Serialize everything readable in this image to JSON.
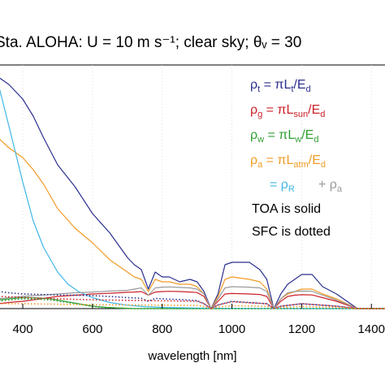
{
  "chart_data": {
    "type": "line",
    "title": "Sta. ALOHA: U = 10 m s⁻¹; clear sky; θᵥ = 30",
    "xlabel": "wavelength [nm]",
    "ylabel": "",
    "xlim": [
      330,
      1460
    ],
    "ylim": [
      0,
      1
    ],
    "x_ticks": [
      400,
      600,
      800,
      1000,
      1200,
      1400
    ],
    "x_tick_labels": [
      "400",
      "600",
      "800",
      "1000",
      "1200",
      "1400"
    ],
    "legend_position": "top-right",
    "legend": [
      {
        "label": "ρt = πLt/Ed",
        "color": "#2b2f8f"
      },
      {
        "label": "ρg = πLsun/Ed",
        "color": "#cc2229"
      },
      {
        "label": "ρw = πLw/Ed",
        "color": "#2f9e32"
      },
      {
        "label": "ρa = πLatm/Ed",
        "color": "#f29b27"
      },
      {
        "label": "= ρR   + ρa",
        "color": "#3fb7e6"
      }
    ],
    "notes": [
      "TOA is solid",
      "SFC is dotted"
    ],
    "series": [
      {
        "id": "rho_t",
        "color": "#2b2f8f",
        "style": "solid",
        "x": [
          330,
          360,
          400,
          430,
          460,
          500,
          550,
          600,
          650,
          700,
          720,
          740,
          760,
          780,
          800,
          820,
          850,
          880,
          900,
          920,
          940,
          960,
          980,
          1000,
          1050,
          1080,
          1100,
          1120,
          1140,
          1160,
          1180,
          1200,
          1230,
          1260,
          1300,
          1330,
          1360,
          1400,
          1460
        ],
        "y": [
          0.95,
          0.92,
          0.86,
          0.79,
          0.7,
          0.59,
          0.5,
          0.39,
          0.31,
          0.21,
          0.18,
          0.16,
          0.08,
          0.15,
          0.13,
          0.13,
          0.11,
          0.12,
          0.11,
          0.07,
          0.0,
          0.06,
          0.18,
          0.19,
          0.19,
          0.16,
          0.12,
          0.0,
          0.06,
          0.1,
          0.12,
          0.14,
          0.14,
          0.09,
          0.06,
          0.03,
          0.0,
          0.0,
          0.0
        ]
      },
      {
        "id": "rho_g",
        "color": "#cc2229",
        "style": "solid",
        "x": [
          330,
          360,
          400,
          450,
          500,
          550,
          600,
          650,
          700,
          720,
          740,
          760,
          780,
          800,
          820,
          850,
          880,
          900,
          920,
          940,
          960,
          980,
          1000,
          1050,
          1080,
          1100,
          1120,
          1140,
          1160,
          1180,
          1200,
          1230,
          1260,
          1300,
          1330,
          1360,
          1460
        ],
        "y": [
          0.02,
          0.025,
          0.03,
          0.04,
          0.05,
          0.055,
          0.06,
          0.063,
          0.067,
          0.068,
          0.07,
          0.055,
          0.068,
          0.07,
          0.071,
          0.07,
          0.068,
          0.066,
          0.05,
          0.0,
          0.03,
          0.06,
          0.062,
          0.06,
          0.058,
          0.05,
          0.0,
          0.03,
          0.05,
          0.055,
          0.057,
          0.056,
          0.045,
          0.03,
          0.015,
          0.0,
          0.0
        ]
      },
      {
        "id": "rho_w",
        "color": "#2f9e32",
        "style": "solid",
        "x": [
          330,
          360,
          400,
          440,
          480,
          520,
          560,
          600,
          640,
          680,
          720,
          760,
          800,
          900,
          1000,
          1200,
          1460
        ],
        "y": [
          0.035,
          0.04,
          0.045,
          0.044,
          0.04,
          0.03,
          0.02,
          0.01,
          0.005,
          0.002,
          0.0,
          0.0,
          0.0,
          0.0,
          0.0,
          0.0,
          0.0
        ]
      },
      {
        "id": "rho_a",
        "color": "#f29b27",
        "style": "solid",
        "x": [
          330,
          360,
          400,
          430,
          460,
          500,
          550,
          600,
          650,
          700,
          720,
          740,
          760,
          780,
          800,
          820,
          850,
          880,
          900,
          920,
          940,
          960,
          980,
          1000,
          1050,
          1080,
          1100,
          1120,
          1140,
          1160,
          1180,
          1200,
          1230,
          1260,
          1300,
          1330,
          1360,
          1460
        ],
        "y": [
          0.7,
          0.66,
          0.62,
          0.57,
          0.51,
          0.41,
          0.33,
          0.27,
          0.2,
          0.15,
          0.13,
          0.12,
          0.07,
          0.12,
          0.11,
          0.11,
          0.1,
          0.1,
          0.09,
          0.06,
          0.0,
          0.05,
          0.12,
          0.13,
          0.12,
          0.11,
          0.08,
          0.0,
          0.04,
          0.06,
          0.07,
          0.08,
          0.08,
          0.06,
          0.04,
          0.02,
          0.0,
          0.0
        ]
      },
      {
        "id": "rho_r",
        "color": "#3fb7e6",
        "style": "solid",
        "x": [
          330,
          360,
          400,
          430,
          460,
          500,
          530,
          560,
          600,
          650,
          700,
          750,
          800,
          900,
          1000,
          1200,
          1460
        ],
        "y": [
          0.92,
          0.75,
          0.52,
          0.36,
          0.25,
          0.15,
          0.1,
          0.07,
          0.045,
          0.025,
          0.014,
          0.008,
          0.005,
          0.002,
          0.001,
          0.0,
          0.0
        ]
      },
      {
        "id": "rho_aer",
        "color": "#9a9a9a",
        "style": "solid",
        "x": [
          330,
          360,
          400,
          450,
          500,
          550,
          600,
          650,
          700,
          720,
          740,
          760,
          780,
          800,
          820,
          850,
          880,
          900,
          920,
          940,
          960,
          980,
          1000,
          1050,
          1080,
          1100,
          1120,
          1140,
          1160,
          1180,
          1200,
          1230,
          1260,
          1300,
          1330,
          1360,
          1460
        ],
        "y": [
          0.04,
          0.045,
          0.05,
          0.055,
          0.06,
          0.065,
          0.068,
          0.072,
          0.075,
          0.08,
          0.085,
          0.055,
          0.085,
          0.088,
          0.089,
          0.087,
          0.085,
          0.08,
          0.06,
          0.0,
          0.04,
          0.085,
          0.09,
          0.088,
          0.085,
          0.07,
          0.0,
          0.04,
          0.065,
          0.07,
          0.072,
          0.071,
          0.055,
          0.035,
          0.018,
          0.0,
          0.0
        ]
      },
      {
        "id": "sfc_blue",
        "color": "#2b2f8f",
        "style": "dotted",
        "x": [
          330,
          360,
          400,
          450,
          500,
          550,
          600,
          650,
          700,
          720,
          740,
          760,
          780,
          800,
          850,
          900,
          920,
          940,
          960,
          1000,
          1100,
          1120,
          1140,
          1200,
          1300,
          1360,
          1460
        ],
        "y": [
          0.07,
          0.065,
          0.06,
          0.058,
          0.056,
          0.055,
          0.053,
          0.05,
          0.045,
          0.044,
          0.042,
          0.03,
          0.042,
          0.04,
          0.037,
          0.033,
          0.02,
          0.0,
          0.015,
          0.03,
          0.02,
          0.0,
          0.01,
          0.02,
          0.01,
          0.0,
          0.0
        ]
      },
      {
        "id": "sfc_red",
        "color": "#cc2229",
        "style": "dotted",
        "x": [
          330,
          400,
          450,
          500,
          550,
          600,
          700,
          800,
          900,
          920,
          940,
          960,
          1000,
          1100,
          1120,
          1140,
          1200,
          1300,
          1360,
          1460
        ],
        "y": [
          0.05,
          0.046,
          0.043,
          0.04,
          0.038,
          0.036,
          0.034,
          0.032,
          0.03,
          0.02,
          0.0,
          0.015,
          0.028,
          0.02,
          0.0,
          0.01,
          0.02,
          0.01,
          0.0,
          0.0
        ]
      },
      {
        "id": "sfc_green",
        "color": "#2f9e32",
        "style": "dotted",
        "x": [
          330,
          360,
          400,
          440,
          480,
          520,
          560,
          600,
          640,
          680,
          720,
          760,
          800,
          900,
          1460
        ],
        "y": [
          0.03,
          0.035,
          0.04,
          0.039,
          0.035,
          0.027,
          0.018,
          0.009,
          0.004,
          0.002,
          0.0,
          0.0,
          0.0,
          0.0,
          0.0
        ]
      },
      {
        "id": "sfc_orange",
        "color": "#f29b27",
        "style": "dotted",
        "x": [
          330,
          400,
          450,
          500,
          550,
          600,
          700,
          800,
          900,
          920,
          940,
          960,
          1000,
          1100,
          1120,
          1140,
          1200,
          1300,
          1360,
          1460
        ],
        "y": [
          0.02,
          0.02,
          0.019,
          0.018,
          0.017,
          0.016,
          0.015,
          0.014,
          0.013,
          0.009,
          0.0,
          0.007,
          0.012,
          0.009,
          0.0,
          0.005,
          0.009,
          0.005,
          0.0,
          0.0
        ]
      }
    ]
  }
}
